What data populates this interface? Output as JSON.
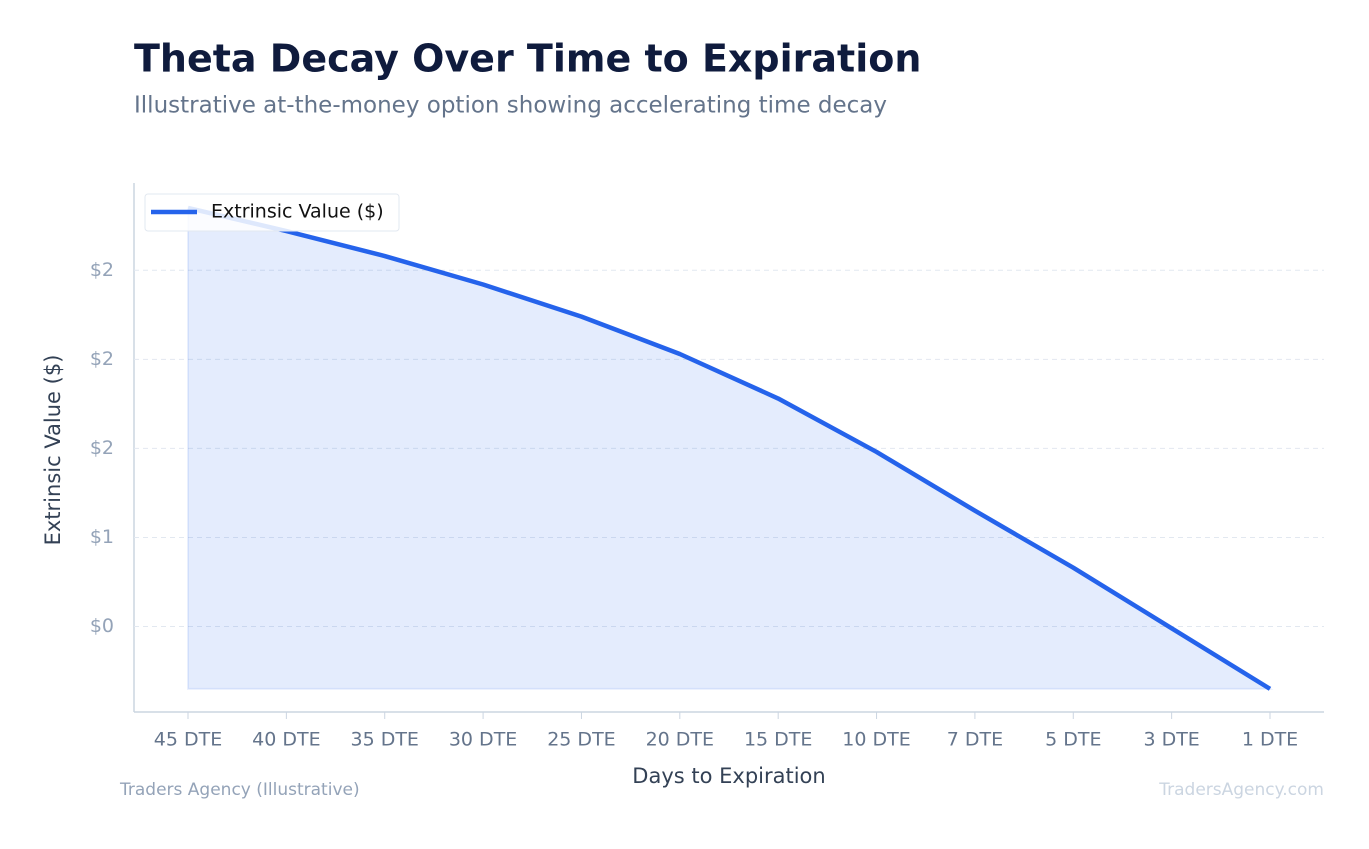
{
  "chart_data": {
    "type": "area",
    "title": "Theta Decay Over Time to Expiration",
    "subtitle": "Illustrative at-the-money option showing accelerating time decay",
    "x_label": "Days to Expiration",
    "y_label": "Extrinsic Value ($)",
    "categories": [
      "45 DTE",
      "40 DTE",
      "35 DTE",
      "30 DTE",
      "25 DTE",
      "20 DTE",
      "15 DTE",
      "10 DTE",
      "7 DTE",
      "5 DTE",
      "3 DTE",
      "1 DTE"
    ],
    "series": [
      {
        "name": "Extrinsic Value ($)",
        "color": "#2563eb",
        "values": [
          2.85,
          2.72,
          2.58,
          2.42,
          2.24,
          2.03,
          1.78,
          1.48,
          1.15,
          0.83,
          0.49,
          0.15
        ]
      }
    ],
    "ylim": [
      0.02,
      2.99
    ],
    "yticks": [
      {
        "value": 0.5,
        "label": "$0"
      },
      {
        "value": 1.0,
        "label": "$1"
      },
      {
        "value": 1.5,
        "label": "$2"
      },
      {
        "value": 2.0,
        "label": "$2"
      },
      {
        "value": 2.5,
        "label": "$2"
      }
    ],
    "grid": true,
    "legend": "upper-left",
    "footer_left": "Traders Agency (Illustrative)",
    "footer_right": "TradersAgency.com"
  }
}
